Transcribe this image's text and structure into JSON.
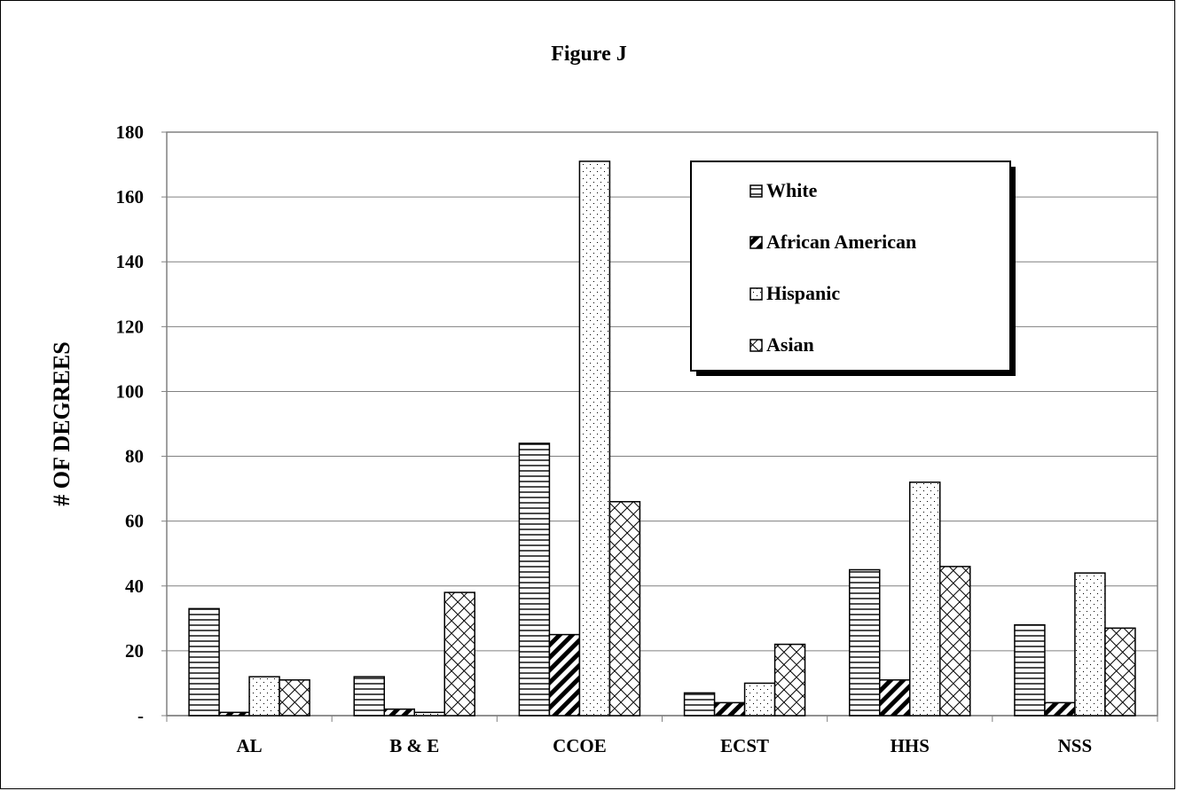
{
  "chart_data": {
    "type": "bar",
    "title": "Figure J",
    "xlabel": "",
    "ylabel": "# OF DEGREES",
    "ylim": [
      0,
      180
    ],
    "yticks": [
      0,
      20,
      40,
      60,
      80,
      100,
      120,
      140,
      160,
      180
    ],
    "ytick_labels": [
      "-",
      "20",
      "40",
      "60",
      "80",
      "100",
      "120",
      "140",
      "160",
      "180"
    ],
    "categories": [
      "AL",
      "B & E",
      "CCOE",
      "ECST",
      "HHS",
      "NSS"
    ],
    "series": [
      {
        "name": "White",
        "pattern": "horizontal-lines",
        "values": [
          33,
          12,
          84,
          7,
          45,
          28
        ]
      },
      {
        "name": "African American",
        "pattern": "diagonal-stripes",
        "values": [
          1,
          2,
          25,
          4,
          11,
          4
        ]
      },
      {
        "name": "Hispanic",
        "pattern": "dots",
        "values": [
          12,
          1,
          171,
          10,
          72,
          44
        ]
      },
      {
        "name": "Asian",
        "pattern": "crosshatch",
        "values": [
          11,
          38,
          66,
          22,
          46,
          27
        ]
      }
    ],
    "grid": true,
    "legend_position": "top-right"
  }
}
